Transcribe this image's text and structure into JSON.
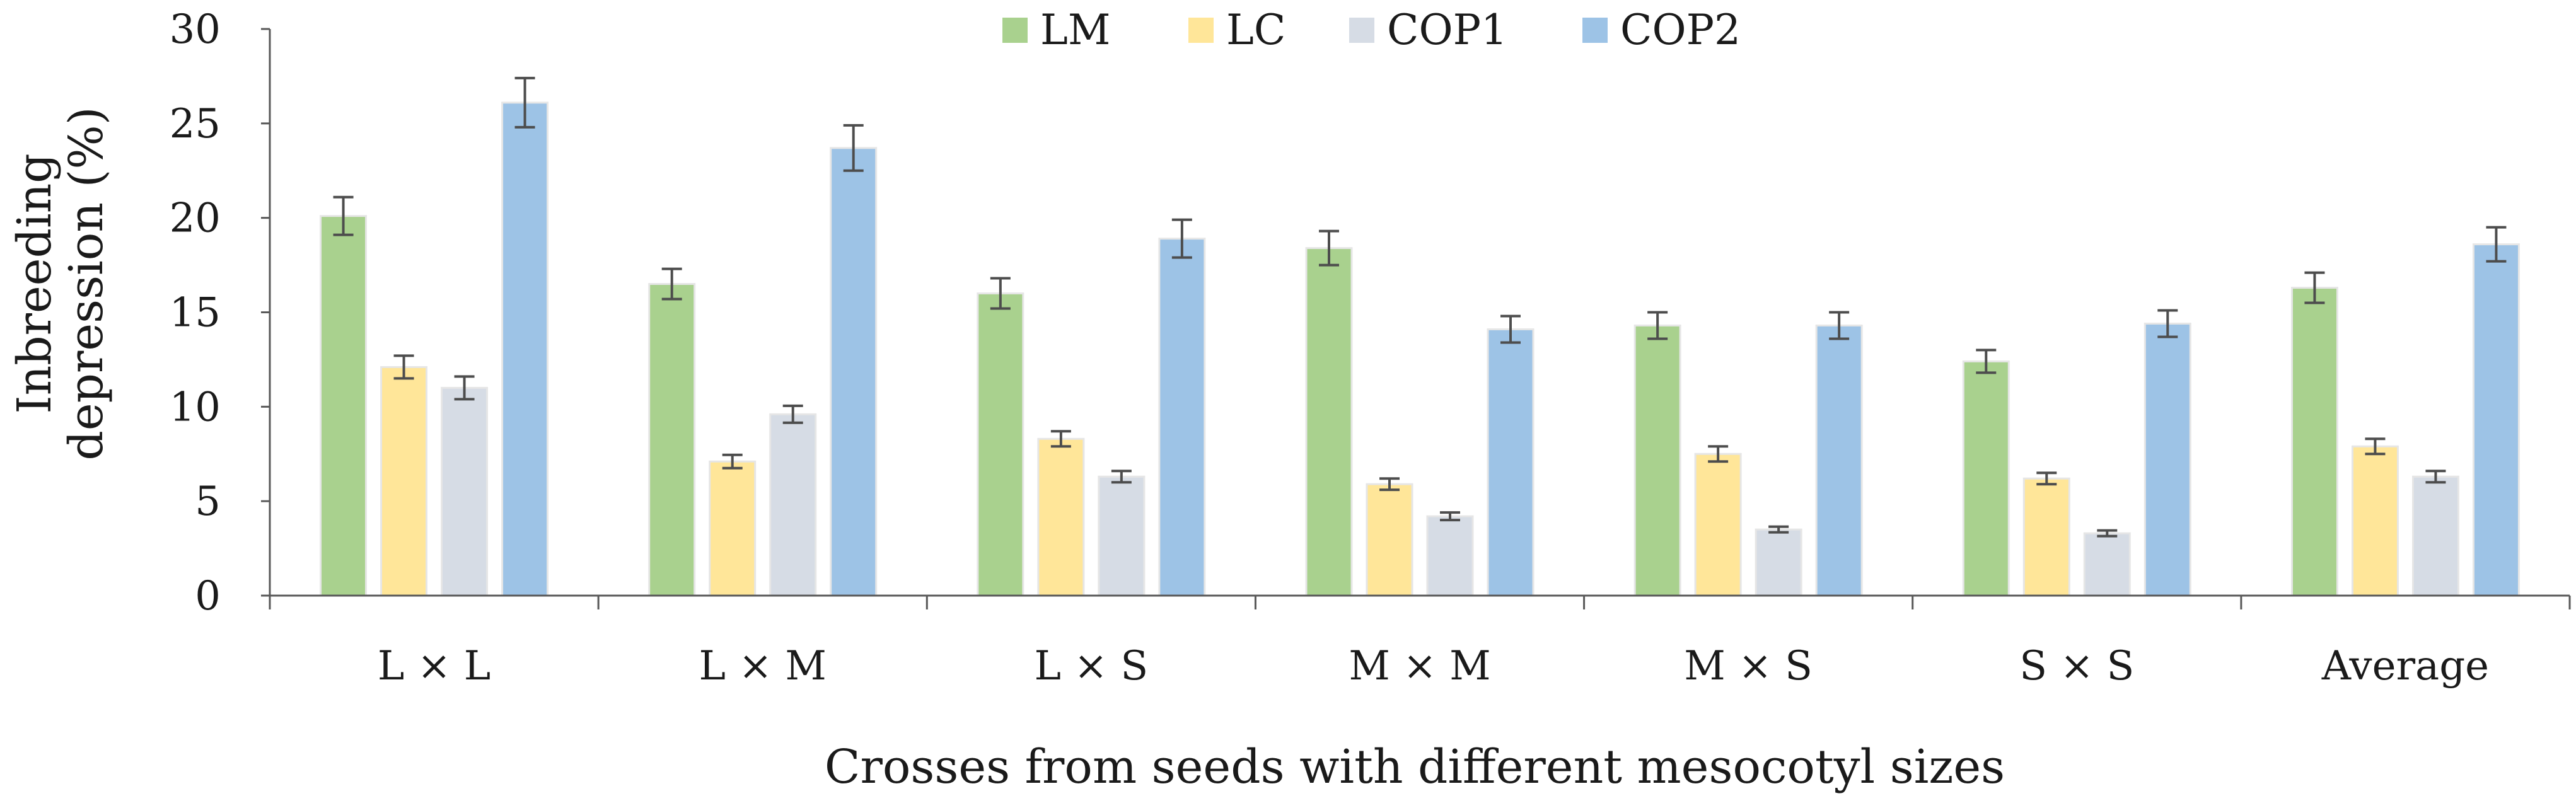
{
  "chart_data": {
    "type": "bar",
    "title": "",
    "xlabel": "Crosses from seeds with different mesocotyl sizes",
    "ylabel_lines": [
      "Inbreeding",
      "depression (%)"
    ],
    "ylim": [
      0,
      30
    ],
    "yticks": [
      0,
      5,
      10,
      15,
      20,
      25,
      30
    ],
    "legend_position": "top-center",
    "categories": [
      "L × L",
      "L × M",
      "L × S",
      "M × M",
      "M × S",
      "S × S",
      "Average"
    ],
    "series": [
      {
        "name": "LM",
        "color": "#a9d18e",
        "values": [
          20.1,
          16.5,
          16.0,
          18.4,
          14.3,
          12.4,
          16.3
        ],
        "errors": [
          1.0,
          0.8,
          0.8,
          0.9,
          0.7,
          0.6,
          0.8
        ]
      },
      {
        "name": "LC",
        "color": "#ffe699",
        "values": [
          12.1,
          7.1,
          8.3,
          5.9,
          7.5,
          6.2,
          7.9
        ],
        "errors": [
          0.6,
          0.35,
          0.4,
          0.3,
          0.4,
          0.3,
          0.4
        ]
      },
      {
        "name": "COP1",
        "color": "#d6dce5",
        "values": [
          11.0,
          9.6,
          6.3,
          4.2,
          3.5,
          3.3,
          6.3
        ],
        "errors": [
          0.6,
          0.45,
          0.3,
          0.2,
          0.15,
          0.15,
          0.3
        ]
      },
      {
        "name": "COP2",
        "color": "#9dc3e6",
        "values": [
          26.1,
          23.7,
          18.9,
          14.1,
          14.3,
          14.4,
          18.6
        ],
        "errors": [
          1.3,
          1.2,
          1.0,
          0.7,
          0.7,
          0.7,
          0.9
        ]
      }
    ]
  }
}
